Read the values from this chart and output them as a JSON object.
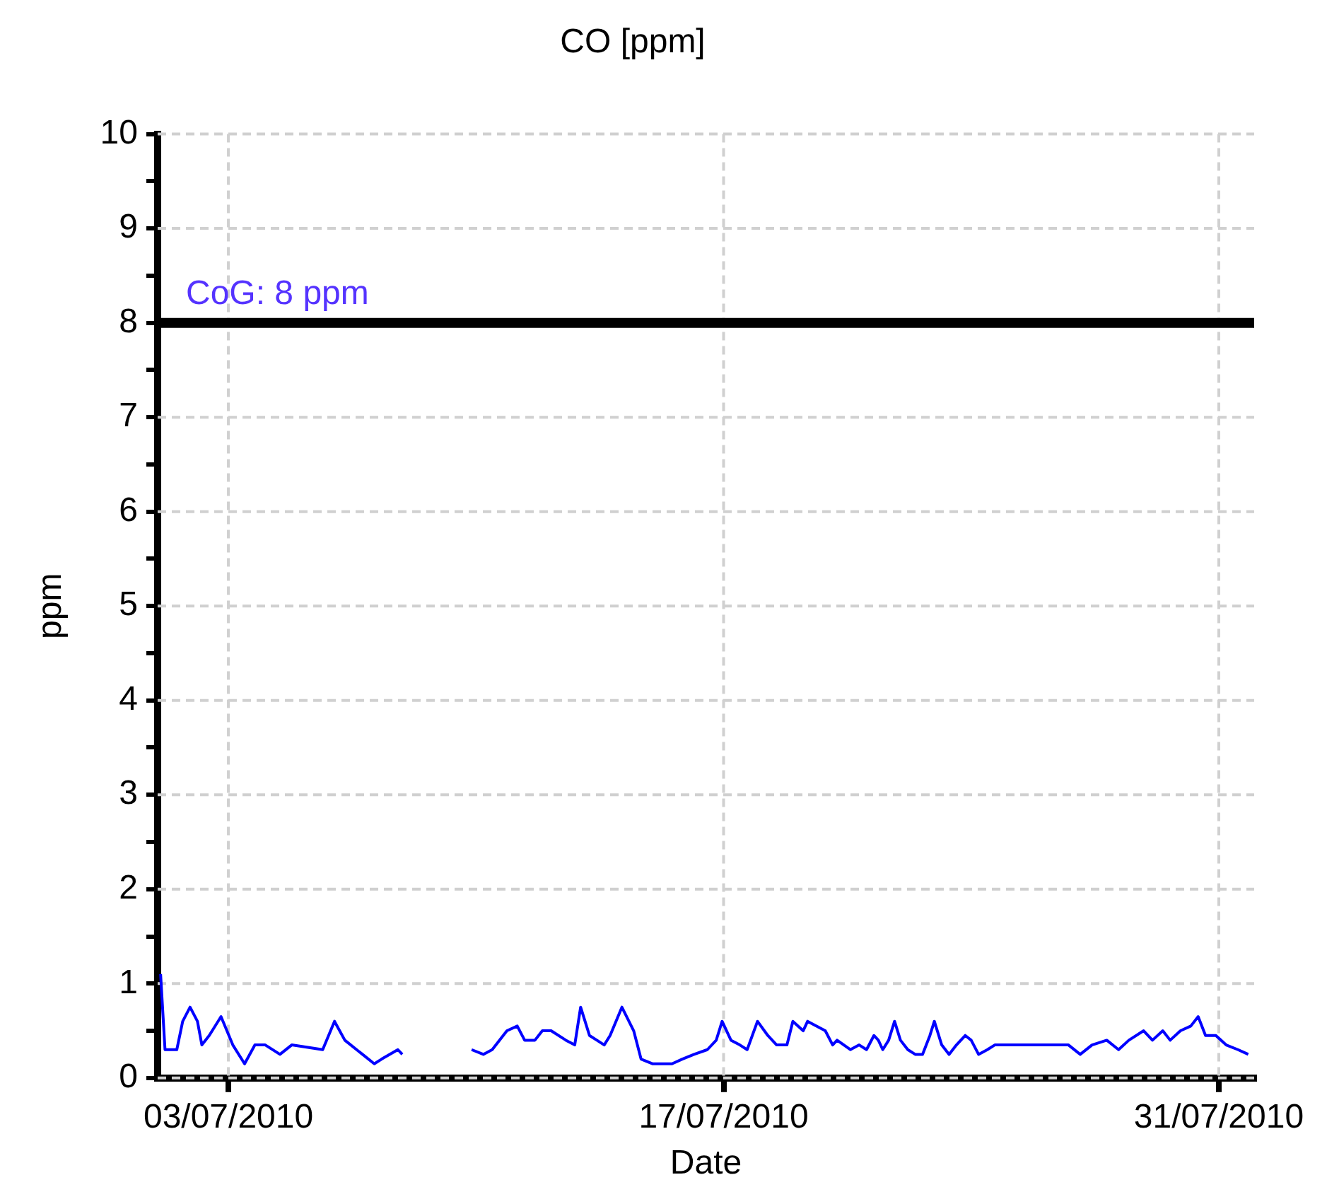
{
  "chart_data": {
    "type": "line",
    "title": "CO [ppm]",
    "xlabel": "Date",
    "ylabel": "ppm",
    "x": [
      "2010-07-01T02:00",
      "2010-07-01T05:00",
      "2010-07-01T13:00",
      "2010-07-01T17:00",
      "2010-07-01T22:00",
      "2010-07-02T03:00",
      "2010-07-02T06:00",
      "2010-07-02T11:00",
      "2010-07-02T19:00",
      "2010-07-03T03:00",
      "2010-07-03T11:00",
      "2010-07-03T18:00",
      "2010-07-04T01:00",
      "2010-07-04T11:00",
      "2010-07-04T19:00",
      "2010-07-05T16:00",
      "2010-07-06T00:00",
      "2010-07-06T07:00",
      "2010-07-06T19:00",
      "2010-07-07T03:00",
      "2010-07-07T08:00",
      "2010-07-07T19:00",
      "2010-07-07T22:00",
      "2010-07-08T20:00",
      "2010-07-09T21:00",
      "2010-07-10T05:00",
      "2010-07-10T11:00",
      "2010-07-10T21:00",
      "2010-07-11T04:00",
      "2010-07-11T09:00",
      "2010-07-11T16:00",
      "2010-07-11T21:00",
      "2010-07-12T03:00",
      "2010-07-12T13:00",
      "2010-07-12T19:00",
      "2010-07-12T23:00",
      "2010-07-13T05:00",
      "2010-07-13T10:00",
      "2010-07-13T15:00",
      "2010-07-13T19:00",
      "2010-07-14T03:00",
      "2010-07-14T11:00",
      "2010-07-14T16:00",
      "2010-07-15T00:00",
      "2010-07-15T13:00",
      "2010-07-15T20:00",
      "2010-07-16T04:00",
      "2010-07-16T13:00",
      "2010-07-16T19:00",
      "2010-07-16T23:00",
      "2010-07-17T05:00",
      "2010-07-17T11:00",
      "2010-07-17T16:00",
      "2010-07-17T23:00",
      "2010-07-18T06:00",
      "2010-07-18T12:00",
      "2010-07-18T19:00",
      "2010-07-18T23:00",
      "2010-07-19T06:00",
      "2010-07-19T09:00",
      "2010-07-19T21:00",
      "2010-07-20T02:00",
      "2010-07-20T05:00",
      "2010-07-20T14:00",
      "2010-07-20T20:00",
      "2010-07-21T01:00",
      "2010-07-21T06:00",
      "2010-07-21T09:00",
      "2010-07-21T12:00",
      "2010-07-21T16:00",
      "2010-07-21T20:00",
      "2010-07-22T00:00",
      "2010-07-22T05:00",
      "2010-07-22T10:00",
      "2010-07-22T15:00",
      "2010-07-22T20:00",
      "2010-07-22T23:00",
      "2010-07-23T04:00",
      "2010-07-23T09:00",
      "2010-07-23T14:00",
      "2010-07-23T20:00",
      "2010-07-24T00:00",
      "2010-07-24T05:00",
      "2010-07-24T11:00",
      "2010-07-24T16:00",
      "2010-07-26T18:00",
      "2010-07-27T02:00",
      "2010-07-27T10:00",
      "2010-07-27T20:00",
      "2010-07-28T04:00",
      "2010-07-28T11:00",
      "2010-07-28T21:00",
      "2010-07-29T03:00",
      "2010-07-29T10:00",
      "2010-07-29T15:00",
      "2010-07-29T22:00",
      "2010-07-30T05:00",
      "2010-07-30T10:00",
      "2010-07-30T15:00",
      "2010-07-30T22:00",
      "2010-07-31T05:00",
      "2010-07-31T13:00",
      "2010-07-31T20:00"
    ],
    "series": [
      {
        "color": "#0000ff",
        "values": [
          1.1,
          0.3,
          0.3,
          0.6,
          0.75,
          0.6,
          0.35,
          0.45,
          0.65,
          0.35,
          0.15,
          0.35,
          0.35,
          0.25,
          0.35,
          0.3,
          0.6,
          0.4,
          0.25,
          0.15,
          0.2,
          0.3,
          0.25,
          null,
          0.3,
          0.25,
          0.3,
          0.5,
          0.55,
          0.4,
          0.4,
          0.5,
          0.5,
          0.4,
          0.35,
          0.75,
          0.45,
          0.4,
          0.35,
          0.45,
          0.75,
          0.5,
          0.2,
          0.15,
          0.15,
          0.2,
          0.25,
          0.3,
          0.4,
          0.6,
          0.4,
          0.35,
          0.3,
          0.6,
          0.45,
          0.35,
          0.35,
          0.6,
          0.5,
          0.6,
          0.5,
          0.35,
          0.4,
          0.3,
          0.35,
          0.3,
          0.45,
          0.4,
          0.3,
          0.4,
          0.6,
          0.4,
          0.3,
          0.25,
          0.25,
          0.45,
          0.6,
          0.35,
          0.25,
          0.35,
          0.45,
          0.4,
          0.25,
          0.3,
          0.35,
          0.35,
          0.25,
          0.35,
          0.4,
          0.3,
          0.4,
          0.5,
          0.4,
          0.5,
          0.4,
          0.5,
          0.55,
          0.65,
          0.45,
          0.45,
          0.35,
          0.3,
          0.25
        ]
      }
    ],
    "xlim": [
      "2010-07-01",
      "2010-08-01"
    ],
    "xticks": [
      {
        "value": "2010-07-03",
        "label": "03/07/2010"
      },
      {
        "value": "2010-07-17",
        "label": "17/07/2010"
      },
      {
        "value": "2010-07-31",
        "label": "31/07/2010"
      }
    ],
    "ylim": [
      0,
      10
    ],
    "yticks": [
      0,
      {
        "value": 0.5,
        "label": null
      },
      1,
      {
        "value": 1.5,
        "label": null
      },
      2,
      {
        "value": 2.5,
        "label": null
      },
      3,
      {
        "value": 3.5,
        "label": null
      },
      4,
      {
        "value": 4.5,
        "label": null
      },
      5,
      {
        "value": 5.5,
        "label": null
      },
      6,
      {
        "value": 6.5,
        "label": null
      },
      7,
      {
        "value": 7.5,
        "label": null
      },
      8,
      {
        "value": 8.5,
        "label": null
      },
      9,
      {
        "value": 9.5,
        "label": null
      },
      10
    ],
    "ref_lines": [
      {
        "axis": "y",
        "value": 8,
        "label": "CoG: 8 ppm",
        "color": "#000000",
        "line_style": "solid"
      }
    ],
    "grid": true,
    "legend": false,
    "marker": "none",
    "line_style": "solid"
  }
}
